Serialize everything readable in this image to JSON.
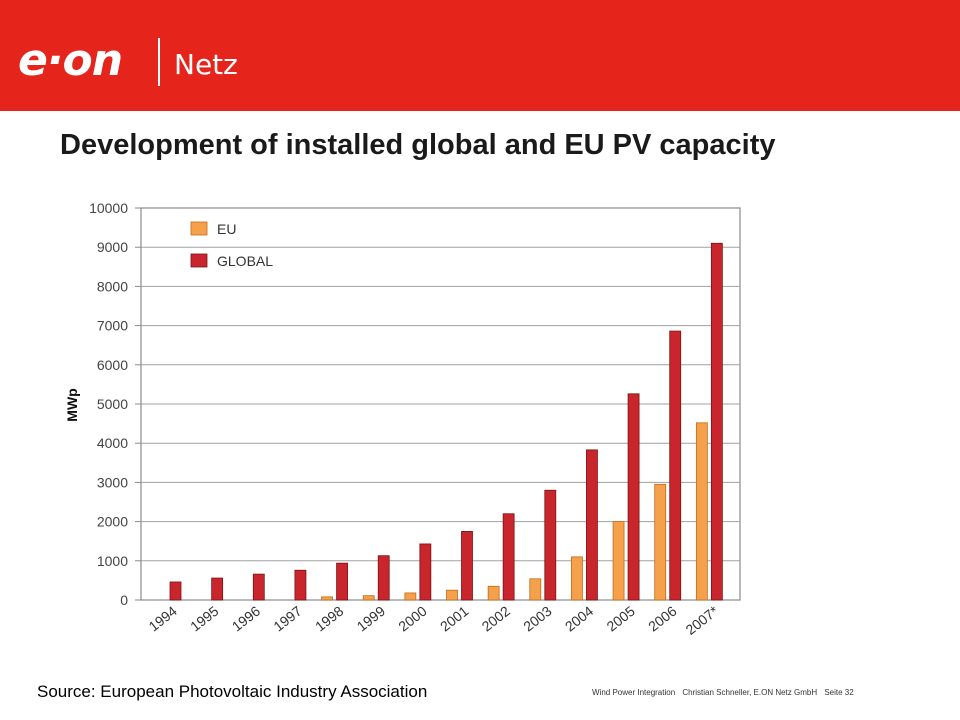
{
  "brand": {
    "logo_text": "e·on",
    "sub_brand": "Netz"
  },
  "slide": {
    "title": "Development of installed global and EU PV capacity",
    "source": "Source: European Photovoltaic Industry Association"
  },
  "footer": {
    "topic": "Wind Power Integration",
    "author": "Christian Schneller, E.ON Netz GmbH",
    "page": "Seite 32"
  },
  "colors": {
    "header_red": "#e5251b",
    "eu": "#f5a04b",
    "global": "#c8262c"
  },
  "chart_data": {
    "type": "bar",
    "categories": [
      "1994",
      "1995",
      "1996",
      "1997",
      "1998",
      "1999",
      "2000",
      "2001",
      "2002",
      "2003",
      "2004",
      "2005",
      "2006",
      "2007*"
    ],
    "series": [
      {
        "name": "EU",
        "values": [
          0,
          0,
          0,
          0,
          80,
          110,
          180,
          250,
          350,
          540,
          1100,
          2000,
          2950,
          4520
        ]
      },
      {
        "name": "GLOBAL",
        "values": [
          460,
          560,
          660,
          760,
          940,
          1130,
          1430,
          1750,
          2200,
          2800,
          3830,
          5260,
          6860,
          9100
        ]
      }
    ],
    "xlabel": "",
    "ylabel": "MWp",
    "ylim": [
      0,
      10000
    ],
    "yticks": [
      "0",
      "1000",
      "2000",
      "3000",
      "4000",
      "5000",
      "6000",
      "7000",
      "8000",
      "9000",
      "10000"
    ],
    "grid": true,
    "legend_position": "top-left"
  }
}
